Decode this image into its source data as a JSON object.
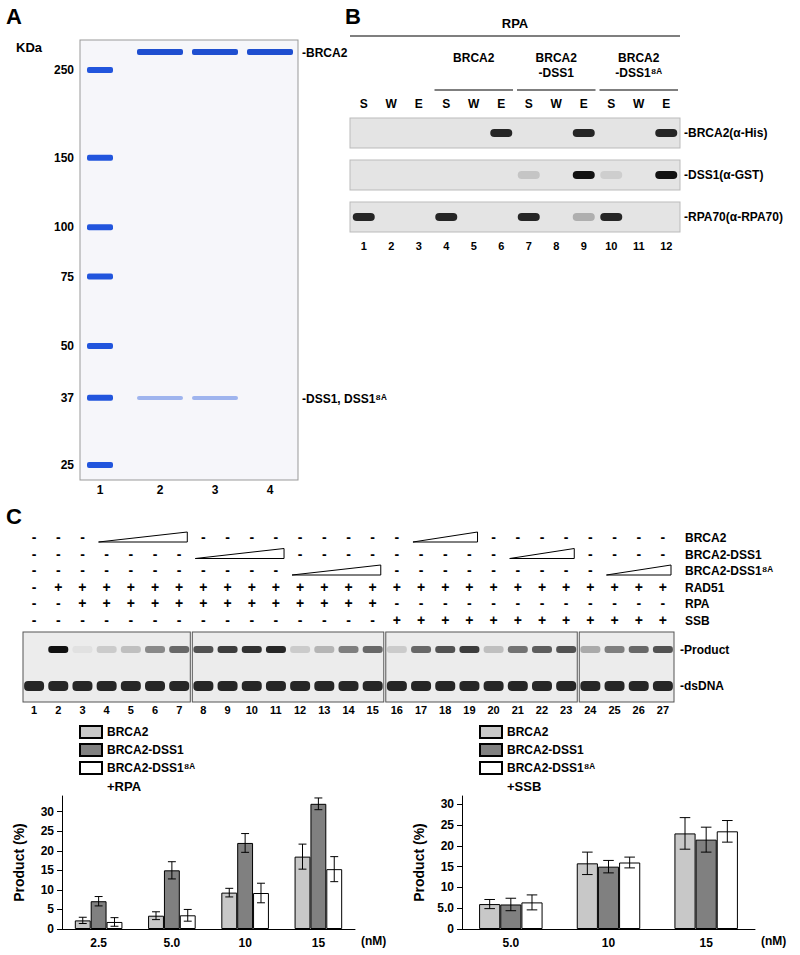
{
  "panels": {
    "A": {
      "label": "A",
      "unit": "KDa",
      "markers": [
        250,
        150,
        100,
        75,
        50,
        37,
        25
      ],
      "lanes": [
        "1",
        "2",
        "3",
        "4"
      ],
      "bands": [
        {
          "label": "-BRCA2",
          "lanes": [
            2,
            3,
            4
          ]
        },
        {
          "label": "-DSS1, DSS1⁸ᴬ",
          "lanes": [
            2,
            3
          ]
        }
      ]
    },
    "B": {
      "label": "B",
      "header": "RPA",
      "groups": [
        {
          "lines": [
            "BRCA2"
          ],
          "lanes": [
            4,
            6
          ]
        },
        {
          "lines": [
            "BRCA2",
            "-DSS1"
          ],
          "lanes": [
            7,
            9
          ]
        },
        {
          "lines": [
            "BRCA2",
            "-DSS1⁸ᴬ"
          ],
          "lanes": [
            10,
            12
          ]
        }
      ],
      "lane_labels": [
        "S",
        "W",
        "E",
        "S",
        "W",
        "E",
        "S",
        "W",
        "E",
        "S",
        "W",
        "E"
      ],
      "lane_numbers": [
        "1",
        "2",
        "3",
        "4",
        "5",
        "6",
        "7",
        "8",
        "9",
        "10",
        "11",
        "12"
      ],
      "rows": [
        {
          "label": "-BRCA2(α-His)",
          "bands": [
            0,
            0,
            0,
            0,
            0,
            0.9,
            0,
            0,
            0.9,
            0,
            0,
            0.9
          ]
        },
        {
          "label": "-DSS1(α-GST)",
          "bands": [
            0,
            0,
            0,
            0,
            0,
            0,
            0.15,
            0,
            1,
            0.1,
            0,
            1
          ]
        },
        {
          "label": "-RPA70(α-RPA70)",
          "bands": [
            0.9,
            0,
            0,
            0.9,
            0,
            0,
            0.9,
            0,
            0.25,
            0.9,
            0,
            0
          ]
        }
      ]
    },
    "C": {
      "label": "C",
      "rows": [
        {
          "label": "BRCA2",
          "marks": [
            "-",
            "-",
            "-",
            null,
            null,
            null,
            null,
            "-",
            "-",
            "-",
            "-",
            "-",
            "-",
            "-",
            "-",
            "-",
            null,
            null,
            null,
            "-",
            "-",
            "-",
            "-",
            "-",
            "-",
            "-",
            "-"
          ],
          "ramps": [
            [
              4,
              7
            ],
            [
              17,
              19
            ]
          ]
        },
        {
          "label": "BRCA2-DSS1",
          "marks": [
            "-",
            "-",
            "-",
            "-",
            "-",
            "-",
            "-",
            null,
            null,
            null,
            null,
            "-",
            "-",
            "-",
            "-",
            "-",
            "-",
            "-",
            "-",
            "-",
            null,
            null,
            null,
            "-",
            "-",
            "-",
            "-"
          ],
          "ramps": [
            [
              8,
              11
            ],
            [
              21,
              23
            ]
          ]
        },
        {
          "label": "BRCA2-DSS1⁸ᴬ",
          "marks": [
            "-",
            "-",
            "-",
            "-",
            "-",
            "-",
            "-",
            "-",
            "-",
            "-",
            "-",
            null,
            null,
            null,
            null,
            "-",
            "-",
            "-",
            "-",
            "-",
            "-",
            "-",
            "-",
            "-",
            null,
            null,
            null
          ],
          "ramps": [
            [
              12,
              15
            ],
            [
              25,
              27
            ]
          ]
        },
        {
          "label": "RAD51",
          "marks": [
            "-",
            "+",
            "+",
            "+",
            "+",
            "+",
            "+",
            "+",
            "+",
            "+",
            "+",
            "+",
            "+",
            "+",
            "+",
            "+",
            "+",
            "+",
            "+",
            "+",
            "+",
            "+",
            "+",
            "+",
            "+",
            "+",
            "+"
          ],
          "ramps": []
        },
        {
          "label": "RPA",
          "marks": [
            "-",
            "-",
            "+",
            "+",
            "+",
            "+",
            "+",
            "+",
            "+",
            "+",
            "+",
            "+",
            "+",
            "+",
            "+",
            "-",
            "-",
            "-",
            "-",
            "-",
            "-",
            "-",
            "-",
            "-",
            "-",
            "-",
            "-"
          ],
          "ramps": []
        },
        {
          "label": "SSB",
          "marks": [
            "-",
            "-",
            "-",
            "-",
            "-",
            "-",
            "-",
            "-",
            "-",
            "-",
            "-",
            "-",
            "-",
            "-",
            "-",
            "+",
            "+",
            "+",
            "+",
            "+",
            "+",
            "+",
            "+",
            "+",
            "+",
            "+",
            "+"
          ],
          "ramps": []
        }
      ],
      "sections": [
        [
          1,
          7
        ],
        [
          8,
          15
        ],
        [
          16,
          23
        ],
        [
          24,
          27
        ]
      ],
      "band_labels": [
        "-Product",
        "-dsDNA"
      ],
      "product_band": [
        0,
        1,
        0.05,
        0.15,
        0.2,
        0.45,
        0.6,
        0.7,
        0.8,
        0.85,
        0.9,
        0.15,
        0.25,
        0.5,
        0.6,
        0.15,
        0.6,
        0.7,
        0.8,
        0.2,
        0.55,
        0.65,
        0.7,
        0.3,
        0.5,
        0.6,
        0.7
      ],
      "lane_numbers": [
        "1",
        "2",
        "3",
        "4",
        "5",
        "6",
        "7",
        "8",
        "9",
        "10",
        "11",
        "12",
        "13",
        "14",
        "15",
        "16",
        "17",
        "18",
        "19",
        "20",
        "21",
        "22",
        "23",
        "24",
        "25",
        "26",
        "27"
      ]
    }
  },
  "chart_data": [
    {
      "type": "bar",
      "title": "+RPA",
      "categories": [
        "2.5",
        "5.0",
        "10",
        "15"
      ],
      "x_label": "(nM)",
      "y_label": "Product (%)",
      "ylim": [
        0,
        34
      ],
      "yticks": [
        0,
        5,
        10,
        15,
        20,
        25,
        30
      ],
      "grid": false,
      "legend": "top-left",
      "series": [
        {
          "name": "BRCA2",
          "color": "#c8c8c8",
          "values": [
            2.2,
            3.4,
            9.3,
            18.5
          ],
          "errors": [
            0.8,
            1.0,
            1.1,
            3.2
          ]
        },
        {
          "name": "BRCA2-DSS1",
          "color": "#808080",
          "values": [
            7.1,
            15,
            22,
            32
          ],
          "errors": [
            1.2,
            2.2,
            2.4,
            1.5
          ]
        },
        {
          "name": "BRCA2-DSS1⁸ᴬ",
          "color": "#ffffff",
          "values": [
            1.8,
            3.5,
            9.2,
            15.3
          ],
          "errors": [
            1.1,
            1.5,
            2.5,
            3.2
          ]
        }
      ]
    },
    {
      "type": "bar",
      "title": "+SSB",
      "categories": [
        "5.0",
        "10",
        "15"
      ],
      "x_label": "(nM)",
      "y_label": "Product (%)",
      "ylim": [
        0,
        32
      ],
      "yticks": [
        0,
        {
          "value": 5,
          "label": "5.0"
        },
        10,
        15,
        20,
        25,
        30
      ],
      "grid": false,
      "legend": "top-left",
      "series": [
        {
          "name": "BRCA2",
          "color": "#c8c8c8",
          "values": [
            6,
            15.8,
            23
          ],
          "errors": [
            1.1,
            2.7,
            3.8
          ]
        },
        {
          "name": "BRCA2-DSS1",
          "color": "#808080",
          "values": [
            5.9,
            15,
            21.5
          ],
          "errors": [
            1.5,
            1.5,
            3
          ]
        },
        {
          "name": "BRCA2-DSS1⁸ᴬ",
          "color": "#ffffff",
          "values": [
            6.4,
            16,
            23.5
          ],
          "errors": [
            1.8,
            1.3,
            2.6
          ]
        }
      ]
    }
  ]
}
